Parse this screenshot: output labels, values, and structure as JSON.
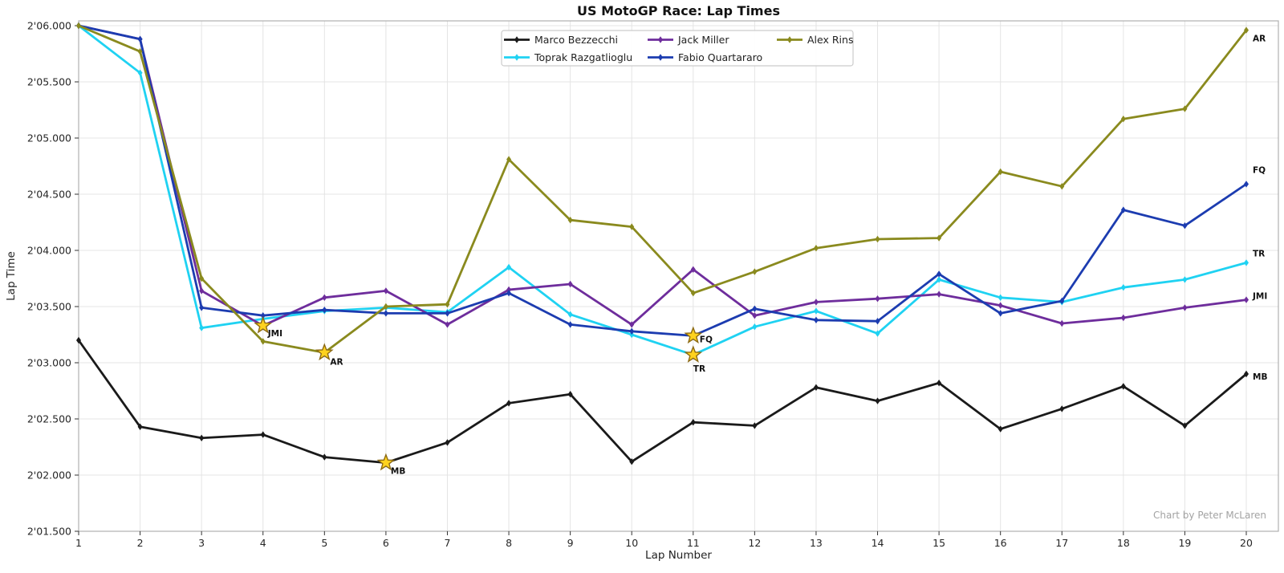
{
  "chart": {
    "title": "US MotoGP Race: Lap Times",
    "xlabel": "Lap Number",
    "ylabel": "Lap Time",
    "watermark": "Chart by Peter McLaren"
  },
  "chart_data": {
    "type": "line",
    "title": "US MotoGP Race: Lap Times",
    "xlabel": "Lap Number",
    "ylabel": "Lap Time",
    "grid": true,
    "legend_position": "upper center, 3 columns",
    "x": [
      1,
      2,
      3,
      4,
      5,
      6,
      7,
      8,
      9,
      10,
      11,
      12,
      13,
      14,
      15,
      16,
      17,
      18,
      19,
      20
    ],
    "x_tick_labels": [
      "1",
      "2",
      "3",
      "4",
      "5",
      "6",
      "7",
      "8",
      "9",
      "10",
      "11",
      "12",
      "13",
      "14",
      "15",
      "16",
      "17",
      "18",
      "19",
      "20"
    ],
    "y_tick_labels": [
      "2'06.000",
      "2'05.500",
      "2'05.000",
      "2'04.500",
      "2'04.000",
      "2'03.500",
      "2'03.000",
      "2'02.500",
      "2'02.000",
      "2'01.500"
    ],
    "y_tick_values": [
      126.0,
      125.5,
      125.0,
      124.5,
      124.0,
      123.5,
      123.0,
      122.5,
      122.0,
      121.5
    ],
    "ylim": [
      121.5,
      126.043
    ],
    "xlim": [
      1,
      20.52
    ],
    "value_unit": "seconds (total lap time, 2'03.20 = 123.20 s)",
    "series": [
      {
        "name": "Marco Bezzecchi",
        "abbr": "MB",
        "color": "#1a1a1a",
        "fastest_lap": 6,
        "values": [
          123.2,
          122.43,
          122.33,
          122.36,
          122.16,
          122.11,
          122.29,
          122.64,
          122.72,
          122.12,
          122.47,
          122.44,
          122.78,
          122.66,
          122.82,
          122.41,
          122.59,
          122.79,
          122.44,
          122.9
        ]
      },
      {
        "name": "Toprak Razgatlioglu",
        "abbr": "TR",
        "color": "#1fd2f2",
        "fastest_lap": 11,
        "values": [
          126.0,
          125.58,
          123.31,
          123.39,
          123.46,
          123.49,
          123.45,
          123.85,
          123.43,
          123.25,
          123.07,
          123.32,
          123.46,
          123.26,
          123.74,
          123.58,
          123.54,
          123.67,
          123.74,
          123.89
        ]
      },
      {
        "name": "Jack Miller",
        "abbr": "JMI",
        "color": "#6e2d9c",
        "fastest_lap": 4,
        "values": [
          126.0,
          125.88,
          123.64,
          123.33,
          123.58,
          123.64,
          123.34,
          123.65,
          123.7,
          123.34,
          123.83,
          123.42,
          123.54,
          123.57,
          123.61,
          123.51,
          123.35,
          123.4,
          123.49,
          123.56
        ]
      },
      {
        "name": "Fabio Quartararo",
        "abbr": "FQ",
        "color": "#1c3cb0",
        "fastest_lap": 11,
        "values": [
          126.0,
          125.88,
          123.49,
          123.42,
          123.47,
          123.44,
          123.44,
          123.62,
          123.34,
          123.28,
          123.24,
          123.48,
          123.38,
          123.37,
          123.79,
          123.44,
          123.55,
          124.36,
          124.22,
          124.59
        ]
      },
      {
        "name": "Alex Rins",
        "abbr": "AR",
        "color": "#8a8a1e",
        "fastest_lap": 5,
        "values": [
          126.0,
          125.77,
          123.75,
          123.19,
          123.09,
          123.5,
          123.52,
          124.81,
          124.27,
          124.21,
          123.62,
          123.81,
          124.02,
          124.1,
          124.11,
          124.7,
          124.57,
          125.17,
          125.26,
          125.96
        ]
      }
    ],
    "legend_entries": [
      "Marco Bezzecchi",
      "Toprak Razgatlioglu",
      "Jack Miller",
      "Fabio Quartararo",
      "Alex Rins"
    ],
    "annotations": {
      "star_fill": "#ffd21e",
      "star_edge": "#8b6914",
      "note": "gold star on each rider's fastest lap, labeled with rider abbreviation; line-end labels show abbreviation"
    }
  }
}
